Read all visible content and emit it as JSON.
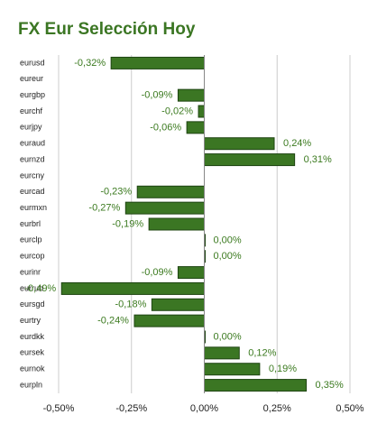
{
  "chart_data": {
    "type": "hbar",
    "title": "FX Eur Selección Hoy",
    "categories": [
      "eurusd",
      "eureur",
      "eurgbp",
      "eurchf",
      "eurjpy",
      "euraud",
      "eurnzd",
      "eurcny",
      "eurcad",
      "eurmxn",
      "eurbrl",
      "eurclp",
      "eurcop",
      "eurinr",
      "eurrub",
      "eursgd",
      "eurtry",
      "eurdkk",
      "eursek",
      "eurnok",
      "eurpln"
    ],
    "values": [
      -0.32,
      null,
      -0.09,
      -0.02,
      -0.06,
      0.24,
      0.31,
      null,
      -0.23,
      -0.27,
      -0.19,
      0.0,
      0.0,
      -0.09,
      -0.49,
      -0.18,
      -0.24,
      0.0,
      0.12,
      0.19,
      0.35
    ],
    "value_labels": [
      "-0,32%",
      null,
      "-0,09%",
      "-0,02%",
      "-0,06%",
      "0,24%",
      "0,31%",
      null,
      "-0,23%",
      "-0,27%",
      "-0,19%",
      "0,00%",
      "0,00%",
      "-0,09%",
      "-0,49%",
      "-0,18%",
      "-0,24%",
      "0,00%",
      "0,12%",
      "0,19%",
      "0,35%"
    ],
    "color": "#3b7623",
    "xlim": [
      -0.5,
      0.5
    ],
    "xticks": [
      {
        "value": -0.5,
        "label": "-0,50%"
      },
      {
        "value": -0.25,
        "label": "-0,25%"
      },
      {
        "value": 0,
        "label": "0,00%"
      },
      {
        "value": 0.25,
        "label": "0,25%"
      },
      {
        "value": 0.5,
        "label": "0,50%"
      }
    ],
    "grid": true
  }
}
